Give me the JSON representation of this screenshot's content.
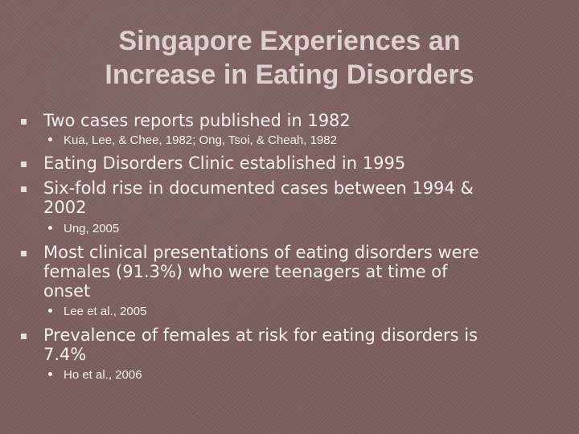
{
  "slide": {
    "title_line1": "Singapore Experiences an",
    "title_line2": "Increase in Eating Disorders",
    "bullets": [
      {
        "text": "Two cases reports published in 1982",
        "sub": "Kua, Lee, & Chee, 1982; Ong, Tsoi, & Cheah, 1982"
      },
      {
        "text": "Eating Disorders Clinic established in 1995"
      },
      {
        "text": "Six-fold rise in documented cases between 1994 &\n2002",
        "sub": "Ung, 2005"
      },
      {
        "text": "Most clinical presentations of eating disorders were\nfemales (91.3%) who were teenagers at time of\nonset",
        "sub": "Lee et al., 2005"
      },
      {
        "text": "Prevalence of females at risk for eating disorders is\n7.4%",
        "sub": "Ho et al., 2006"
      }
    ]
  }
}
